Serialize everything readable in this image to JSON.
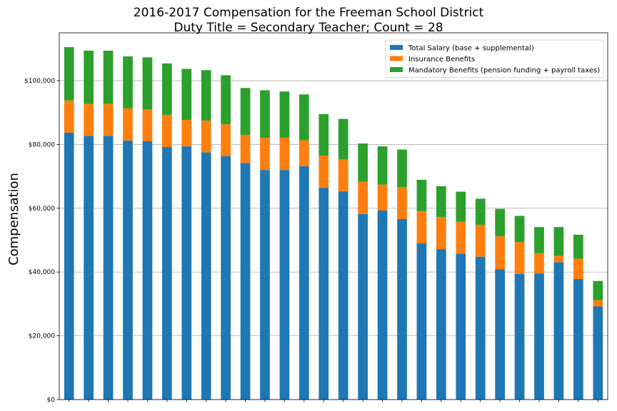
{
  "chart_data": {
    "type": "bar",
    "stacked": true,
    "title": [
      "2016-2017 Compensation for the Freeman School District",
      "Duty Title = Secondary Teacher; Count = 28"
    ],
    "xlabel": "",
    "ylabel": "Compensation",
    "ylim": [
      0,
      115000
    ],
    "yticks": [
      0,
      20000,
      40000,
      60000,
      80000,
      100000
    ],
    "ytick_labels": [
      "$0",
      "$20,000",
      "$40,000",
      "$60,000",
      "$80,000",
      "$100,000"
    ],
    "grid": "horizontal",
    "legend_position": "top-right",
    "categories": [
      "",
      "",
      "",
      "",
      "",
      "",
      "",
      "",
      "",
      "",
      "",
      "",
      "",
      "",
      "",
      "",
      "",
      "",
      "",
      "",
      "",
      "",
      "",
      "",
      "",
      "",
      "",
      ""
    ],
    "series": [
      {
        "name": "Total Salary (base + supplemental)",
        "color": "#1f77b4",
        "values": [
          83700,
          82700,
          82700,
          81200,
          81000,
          79200,
          79400,
          77500,
          76300,
          74200,
          72000,
          72000,
          73200,
          66400,
          65300,
          58200,
          59300,
          56600,
          49000,
          47200,
          45800,
          44800,
          40900,
          39400,
          39500,
          43100,
          37800,
          29200
        ]
      },
      {
        "name": "Insurance Benefits",
        "color": "#ff7f0e",
        "values": [
          10100,
          10000,
          10000,
          10100,
          10000,
          10100,
          8300,
          10000,
          10000,
          8800,
          10100,
          10100,
          8100,
          10100,
          10000,
          10100,
          8100,
          10000,
          10100,
          10000,
          10000,
          10000,
          10300,
          10000,
          6400,
          2000,
          6400,
          2000
        ]
      },
      {
        "name": "Mandatory Benefits (pension funding + payroll taxes)",
        "color": "#2ca02c",
        "values": [
          16700,
          16700,
          16700,
          16300,
          16300,
          16100,
          16000,
          15800,
          15400,
          14700,
          14900,
          14500,
          14400,
          13000,
          12700,
          12000,
          12000,
          11800,
          9800,
          9700,
          9400,
          8200,
          8600,
          8200,
          8200,
          9000,
          7500,
          6000
        ]
      }
    ]
  }
}
